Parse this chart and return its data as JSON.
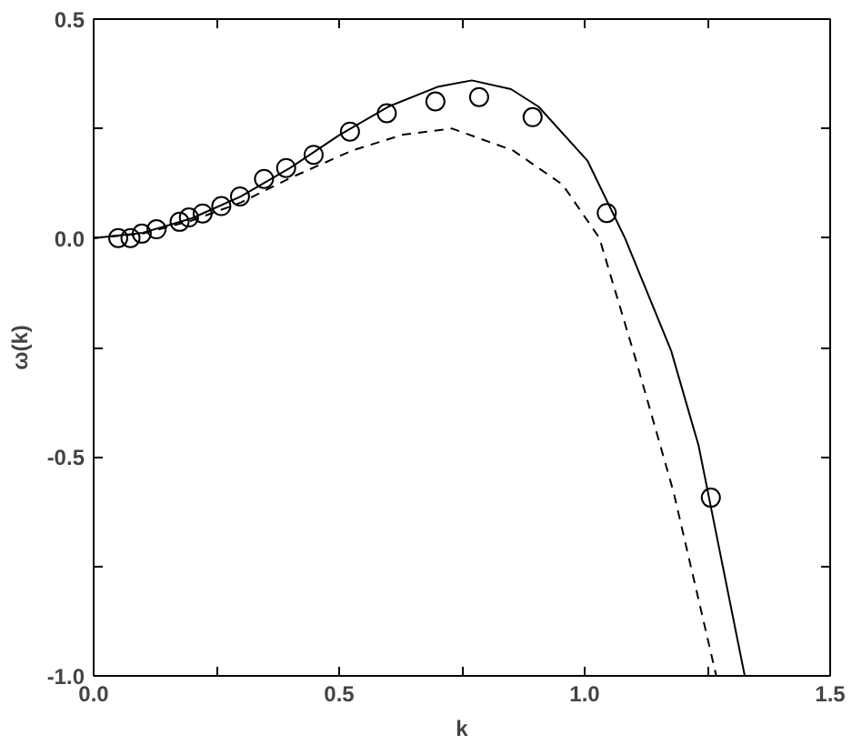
{
  "chart_data": {
    "type": "line",
    "xlabel": "k",
    "ylabel": "ω(k)",
    "xlim": [
      0.0,
      1.5
    ],
    "ylim": [
      -1.0,
      0.5
    ],
    "xticks": [
      {
        "value": 0,
        "label": "0.0"
      },
      {
        "value": 0.25,
        "label": null
      },
      0.5,
      {
        "value": 0.75,
        "label": null
      },
      {
        "value": 1,
        "label": "1.0"
      },
      {
        "value": 1.25,
        "label": null
      },
      1.5
    ],
    "yticks": [
      {
        "value": -1,
        "label": "-1.0"
      },
      {
        "value": -0.75,
        "label": null
      },
      -0.5,
      {
        "value": -0.25,
        "label": null
      },
      {
        "value": 0,
        "label": "0.0"
      },
      {
        "value": 0.25,
        "label": null
      },
      0.5
    ],
    "grid": false,
    "series": [
      {
        "type": "scatter",
        "marker": "circle",
        "color": "#000000",
        "x": [
          0.05,
          0.075,
          0.098,
          0.128,
          0.175,
          0.194,
          0.222,
          0.26,
          0.298,
          0.347,
          0.392,
          0.448,
          0.522,
          0.597,
          0.696,
          0.785,
          0.894,
          1.045,
          1.257
        ],
        "values": [
          0.0,
          0.0,
          0.01,
          0.02,
          0.037,
          0.047,
          0.056,
          0.073,
          0.095,
          0.135,
          0.16,
          0.19,
          0.243,
          0.285,
          0.312,
          0.322,
          0.276,
          0.057,
          -0.593
        ]
      },
      {
        "line_style": "solid",
        "color": "#000000",
        "x": [
          0.0,
          0.1,
          0.2,
          0.3,
          0.4,
          0.5,
          0.6,
          0.7,
          0.77,
          0.85,
          0.906,
          1.006,
          1.082,
          1.176,
          1.232,
          1.326
        ],
        "values": [
          0.0,
          0.012,
          0.045,
          0.095,
          0.16,
          0.235,
          0.3,
          0.345,
          0.36,
          0.34,
          0.3,
          0.176,
          0.0,
          -0.257,
          -0.474,
          -1.0
        ]
      },
      {
        "line_style": "dashed",
        "color": "#000000",
        "x": [
          0.0,
          0.1,
          0.2,
          0.3,
          0.4,
          0.527,
          0.63,
          0.73,
          0.854,
          0.955,
          1.03,
          1.106,
          1.181,
          1.268
        ],
        "values": [
          0.0,
          0.01,
          0.04,
          0.081,
          0.137,
          0.2,
          0.236,
          0.25,
          0.2,
          0.122,
          0.0,
          -0.285,
          -0.58,
          -1.0
        ]
      }
    ]
  }
}
